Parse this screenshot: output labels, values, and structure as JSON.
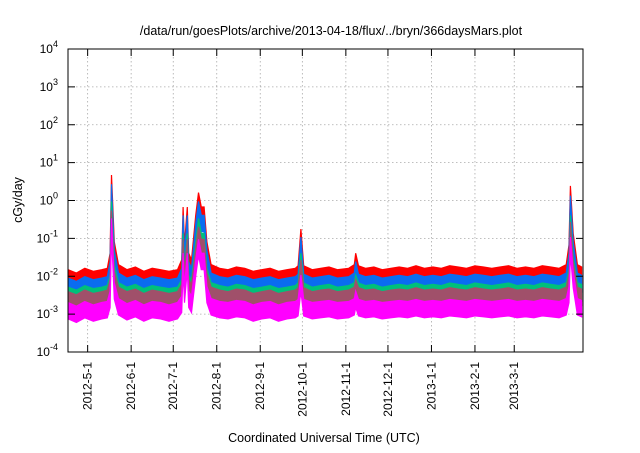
{
  "chart_data": {
    "type": "area",
    "title": "/data/run/goesPlots/archive/2013-04-18/flux/../bryn/366daysMars.plot",
    "xlabel": "Coordinated Universal Time (UTC)",
    "ylabel": "cGy/day",
    "yscale": "log",
    "ylim": [
      0.0001,
      10000
    ],
    "xlim_days": [
      0,
      367
    ],
    "x_origin_date": "2012-04-17",
    "grid": true,
    "y_ticks": [
      {
        "base": "10",
        "exp": "4",
        "value": 10000
      },
      {
        "base": "10",
        "exp": "3",
        "value": 1000
      },
      {
        "base": "10",
        "exp": "2",
        "value": 100
      },
      {
        "base": "10",
        "exp": "1",
        "value": 10
      },
      {
        "base": "10",
        "exp": "0",
        "value": 1
      },
      {
        "base": "10",
        "exp": "-1",
        "value": 0.1
      },
      {
        "base": "10",
        "exp": "-2",
        "value": 0.01
      },
      {
        "base": "10",
        "exp": "-3",
        "value": 0.001
      },
      {
        "base": "10",
        "exp": "-4",
        "value": 0.0001
      }
    ],
    "x_ticks": [
      {
        "label": "2012-5-1",
        "day": 14
      },
      {
        "label": "2012-6-1",
        "day": 45
      },
      {
        "label": "2012-7-1",
        "day": 75
      },
      {
        "label": "2012-8-1",
        "day": 106
      },
      {
        "label": "2012-9-1",
        "day": 137
      },
      {
        "label": "2012-10-1",
        "day": 167
      },
      {
        "label": "2012-11-1",
        "day": 198
      },
      {
        "label": "2012-12-1",
        "day": 228
      },
      {
        "label": "2013-1-1",
        "day": 259
      },
      {
        "label": "2013-2-1",
        "day": 290
      },
      {
        "label": "2013-3-1",
        "day": 318
      }
    ],
    "x": [
      0,
      6,
      12,
      18,
      24,
      28,
      30,
      31,
      33,
      36,
      42,
      48,
      54,
      60,
      66,
      72,
      78,
      81,
      82,
      83,
      85,
      86,
      88,
      91,
      93,
      95,
      97,
      99,
      102,
      108,
      114,
      120,
      126,
      132,
      138,
      144,
      150,
      156,
      162,
      164,
      166,
      168,
      174,
      180,
      186,
      192,
      200,
      204,
      205,
      207,
      212,
      218,
      224,
      230,
      236,
      242,
      248,
      254,
      260,
      266,
      272,
      278,
      284,
      290,
      296,
      302,
      308,
      314,
      320,
      326,
      332,
      338,
      344,
      350,
      355,
      357,
      358,
      360,
      363,
      366
    ],
    "series": [
      {
        "name": "red",
        "color": "#ff0000",
        "values": [
          0.011,
          0.009,
          0.012,
          0.01,
          0.011,
          0.012,
          0.03,
          3.5,
          0.06,
          0.015,
          0.011,
          0.013,
          0.01,
          0.012,
          0.011,
          0.01,
          0.011,
          0.02,
          0.5,
          0.05,
          0.5,
          0.03,
          0.02,
          0.3,
          1.2,
          0.5,
          0.5,
          0.06,
          0.015,
          0.012,
          0.011,
          0.013,
          0.012,
          0.01,
          0.011,
          0.012,
          0.01,
          0.011,
          0.012,
          0.014,
          0.13,
          0.014,
          0.011,
          0.012,
          0.013,
          0.011,
          0.012,
          0.015,
          0.03,
          0.014,
          0.012,
          0.013,
          0.011,
          0.012,
          0.013,
          0.012,
          0.014,
          0.012,
          0.013,
          0.012,
          0.014,
          0.013,
          0.012,
          0.014,
          0.013,
          0.012,
          0.013,
          0.014,
          0.012,
          0.013,
          0.012,
          0.014,
          0.013,
          0.012,
          0.015,
          0.05,
          1.8,
          0.1,
          0.015,
          0.013
        ]
      },
      {
        "name": "blue",
        "color": "#0a6cf0",
        "values": [
          0.0066,
          0.0054,
          0.0072,
          0.006,
          0.0066,
          0.0072,
          0.018,
          2.0,
          0.036,
          0.009,
          0.0066,
          0.0078,
          0.006,
          0.0072,
          0.0066,
          0.006,
          0.0066,
          0.012,
          0.3,
          0.03,
          0.3,
          0.018,
          0.012,
          0.18,
          0.7,
          0.3,
          0.3,
          0.036,
          0.009,
          0.0072,
          0.0066,
          0.0078,
          0.0072,
          0.006,
          0.0066,
          0.0072,
          0.006,
          0.0066,
          0.0072,
          0.0084,
          0.08,
          0.0084,
          0.0066,
          0.0072,
          0.0078,
          0.0066,
          0.0072,
          0.009,
          0.018,
          0.0084,
          0.0072,
          0.0078,
          0.0066,
          0.0072,
          0.0078,
          0.0072,
          0.0084,
          0.0072,
          0.0078,
          0.0072,
          0.0084,
          0.0078,
          0.0072,
          0.0084,
          0.0078,
          0.0072,
          0.0078,
          0.0084,
          0.0072,
          0.0078,
          0.0072,
          0.0084,
          0.0078,
          0.0072,
          0.009,
          0.03,
          1.0,
          0.06,
          0.009,
          0.0078
        ]
      },
      {
        "name": "green",
        "color": "#00c07a",
        "values": [
          0.0038,
          0.0032,
          0.0042,
          0.0035,
          0.0038,
          0.0042,
          0.008,
          0.7,
          0.015,
          0.005,
          0.0038,
          0.0045,
          0.0035,
          0.0042,
          0.0038,
          0.0035,
          0.0038,
          0.006,
          0.1,
          0.012,
          0.1,
          0.008,
          0.006,
          0.06,
          0.25,
          0.1,
          0.1,
          0.012,
          0.005,
          0.0042,
          0.0038,
          0.0045,
          0.0042,
          0.0035,
          0.0038,
          0.0042,
          0.0035,
          0.0038,
          0.0042,
          0.0049,
          0.03,
          0.0049,
          0.0038,
          0.0042,
          0.0045,
          0.0038,
          0.0042,
          0.005,
          0.008,
          0.0049,
          0.0042,
          0.0045,
          0.0038,
          0.0042,
          0.0045,
          0.0042,
          0.0049,
          0.0042,
          0.0045,
          0.0042,
          0.0049,
          0.0045,
          0.0042,
          0.0049,
          0.0045,
          0.0042,
          0.0045,
          0.0049,
          0.0042,
          0.0045,
          0.0042,
          0.0049,
          0.0045,
          0.0042,
          0.005,
          0.012,
          0.3,
          0.025,
          0.005,
          0.0045
        ]
      },
      {
        "name": "brown",
        "color": "#a0506a",
        "values": [
          0.0029,
          0.0024,
          0.0032,
          0.0026,
          0.0029,
          0.0032,
          0.006,
          0.4,
          0.01,
          0.0038,
          0.0029,
          0.0034,
          0.0026,
          0.0032,
          0.0029,
          0.0026,
          0.0029,
          0.0045,
          0.07,
          0.009,
          0.07,
          0.006,
          0.0045,
          0.04,
          0.15,
          0.07,
          0.07,
          0.009,
          0.0038,
          0.0032,
          0.0029,
          0.0034,
          0.0032,
          0.0026,
          0.0029,
          0.0032,
          0.0026,
          0.0029,
          0.0032,
          0.0037,
          0.02,
          0.0037,
          0.0029,
          0.0032,
          0.0034,
          0.0029,
          0.0032,
          0.0038,
          0.006,
          0.0037,
          0.0032,
          0.0034,
          0.0029,
          0.0032,
          0.0034,
          0.0032,
          0.0037,
          0.0032,
          0.0034,
          0.0032,
          0.0037,
          0.0034,
          0.0032,
          0.0037,
          0.0034,
          0.0032,
          0.0034,
          0.0037,
          0.0032,
          0.0034,
          0.0032,
          0.0037,
          0.0034,
          0.0032,
          0.0038,
          0.009,
          0.2,
          0.018,
          0.0038,
          0.0034
        ]
      },
      {
        "name": "magenta",
        "color": "#ff00ff",
        "values": [
          0.0015,
          0.0012,
          0.0016,
          0.0013,
          0.0015,
          0.0016,
          0.003,
          0.25,
          0.005,
          0.0019,
          0.0014,
          0.0017,
          0.0013,
          0.0016,
          0.0015,
          0.0013,
          0.0015,
          0.0022,
          0.03,
          0.004,
          0.03,
          0.003,
          0.0022,
          0.02,
          0.07,
          0.03,
          0.03,
          0.004,
          0.0019,
          0.0016,
          0.0015,
          0.0017,
          0.0016,
          0.0013,
          0.0015,
          0.0016,
          0.0013,
          0.0015,
          0.0016,
          0.0018,
          0.008,
          0.0018,
          0.0015,
          0.0016,
          0.0017,
          0.0015,
          0.0016,
          0.0019,
          0.003,
          0.0018,
          0.0016,
          0.0017,
          0.0015,
          0.0016,
          0.0017,
          0.0016,
          0.0018,
          0.0016,
          0.0017,
          0.0016,
          0.0018,
          0.0017,
          0.0016,
          0.0018,
          0.0017,
          0.0016,
          0.0017,
          0.0018,
          0.0016,
          0.0017,
          0.0016,
          0.0018,
          0.0017,
          0.0016,
          0.0019,
          0.004,
          0.08,
          0.01,
          0.0019,
          0.0017
        ]
      }
    ]
  }
}
